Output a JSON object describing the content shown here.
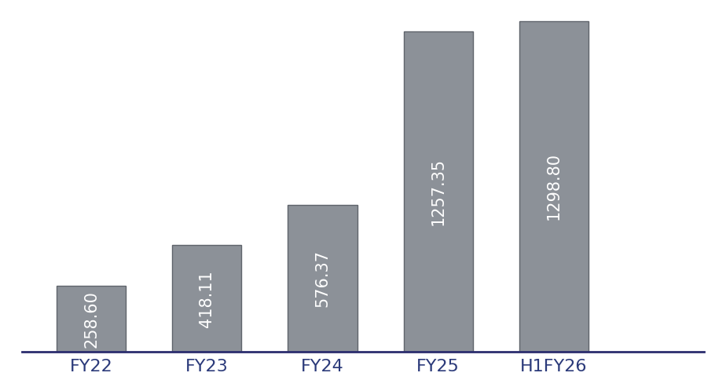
{
  "chart_data": {
    "type": "bar",
    "categories": [
      "FY22",
      "FY23",
      "FY24",
      "FY25",
      "H1FY26"
    ],
    "values": [
      258.6,
      418.11,
      576.37,
      1257.35,
      1298.8
    ],
    "value_labels": [
      "258.60",
      "418.11",
      "576.37",
      "1257.35",
      "1298.80"
    ],
    "color": "#8c9198",
    "ylim": [
      0,
      1350
    ],
    "data_labels": true,
    "tick_labels": "x",
    "grid": false
  }
}
